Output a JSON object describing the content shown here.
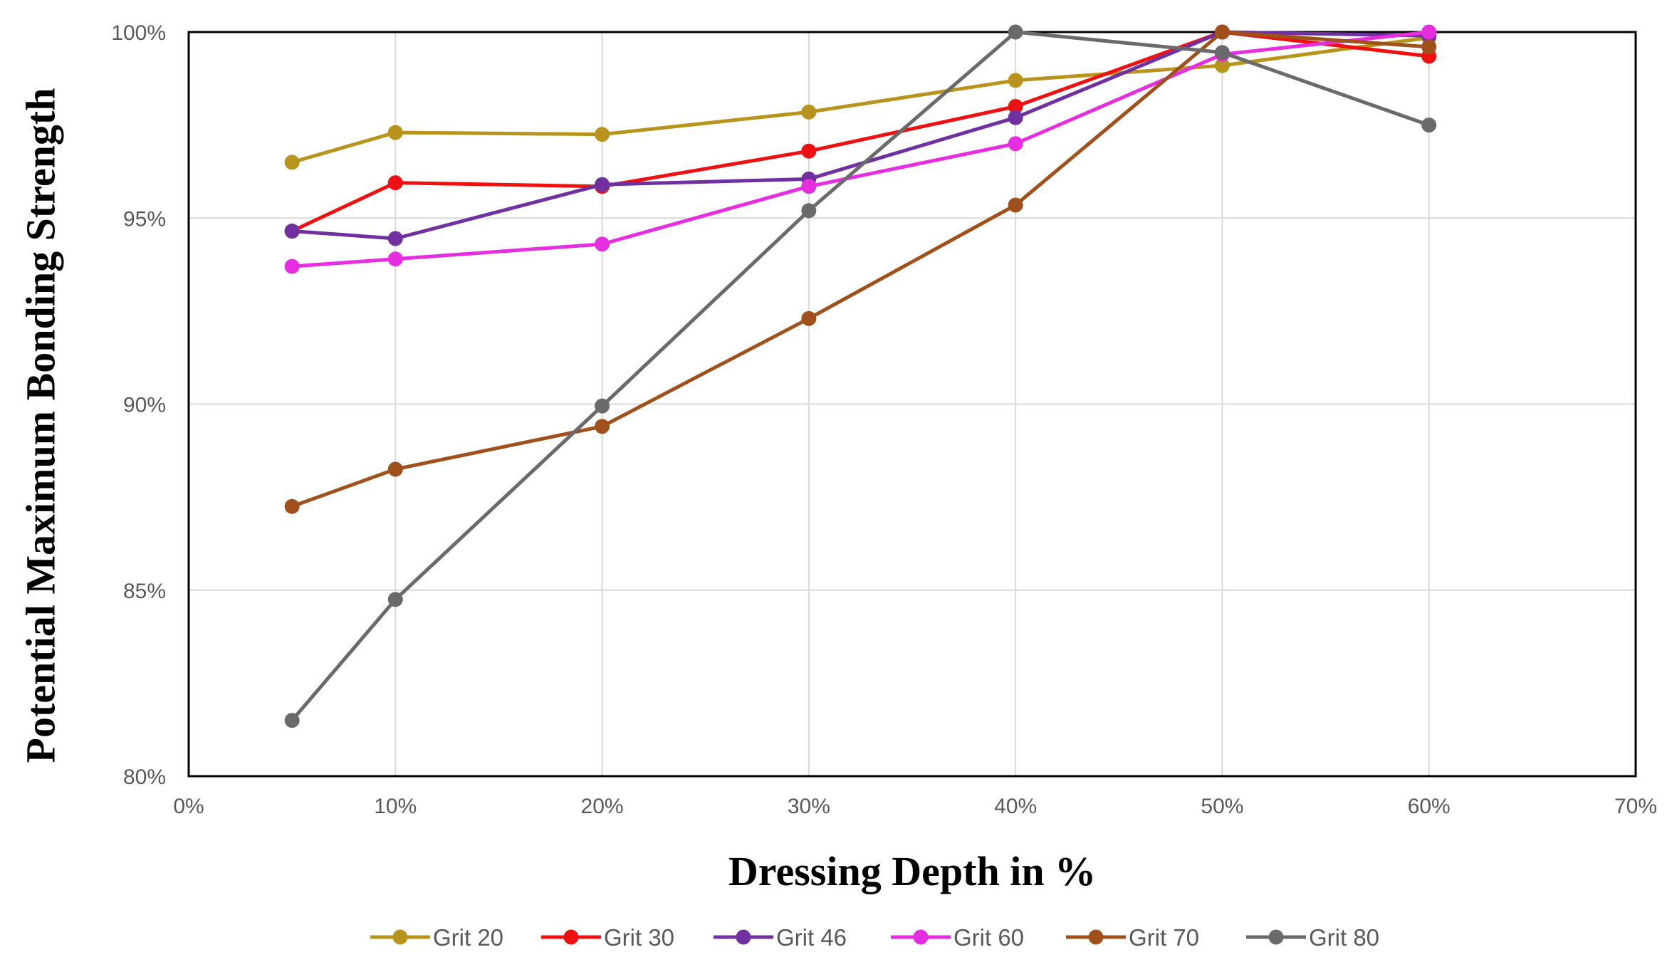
{
  "chart_data": {
    "type": "line",
    "title": "",
    "xlabel": "Dressing Depth in %",
    "ylabel": "Potential Maximum Bonding Strength",
    "xlim": [
      0,
      70
    ],
    "ylim": [
      80,
      100
    ],
    "x_ticks": [
      0,
      10,
      20,
      30,
      40,
      50,
      60,
      70
    ],
    "x_tick_labels": [
      "0%",
      "10%",
      "20%",
      "30%",
      "40%",
      "50%",
      "60%",
      "70%"
    ],
    "y_ticks": [
      80,
      85,
      90,
      95,
      100
    ],
    "y_tick_labels": [
      "80%",
      "85%",
      "90%",
      "95%",
      "100%"
    ],
    "grid": true,
    "legend_position": "bottom",
    "x": [
      5,
      10,
      20,
      30,
      40,
      50,
      60
    ],
    "series": [
      {
        "name": "Grit 20",
        "color": "#B8941C",
        "values": [
          96.5,
          97.3,
          97.25,
          97.85,
          98.7,
          99.1,
          99.85
        ]
      },
      {
        "name": "Grit 30",
        "color": "#EE1111",
        "values": [
          94.65,
          95.95,
          95.85,
          96.8,
          98.0,
          100.0,
          99.35
        ]
      },
      {
        "name": "Grit 46",
        "color": "#7030A0",
        "values": [
          94.65,
          94.45,
          95.9,
          96.05,
          97.7,
          100.0,
          99.9
        ]
      },
      {
        "name": "Grit 60",
        "color": "#E62EE0",
        "values": [
          93.7,
          93.9,
          94.3,
          95.85,
          97.0,
          99.4,
          100.0
        ]
      },
      {
        "name": "Grit 70",
        "color": "#A0501A",
        "values": [
          87.25,
          88.25,
          89.4,
          92.3,
          95.35,
          100.0,
          99.6
        ]
      },
      {
        "name": "Grit 80",
        "color": "#6A6A6A",
        "values": [
          81.5,
          84.75,
          89.95,
          95.2,
          100.0,
          99.45,
          97.5
        ]
      }
    ]
  }
}
